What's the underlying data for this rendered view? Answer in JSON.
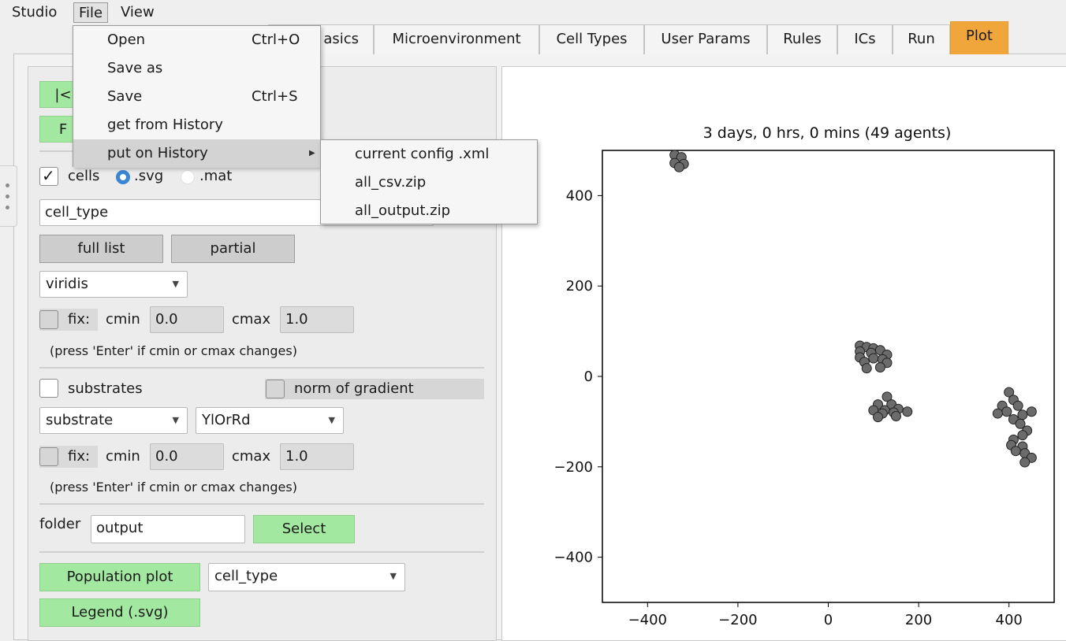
{
  "menubar": {
    "studio": "Studio",
    "file": "File",
    "view": "View"
  },
  "tabs": [
    {
      "label": "asics"
    },
    {
      "label": "Microenvironment"
    },
    {
      "label": "Cell Types"
    },
    {
      "label": "User Params"
    },
    {
      "label": "Rules"
    },
    {
      "label": "ICs"
    },
    {
      "label": "Run"
    },
    {
      "label": "Plot"
    }
  ],
  "file_menu": {
    "open": "Open",
    "open_shortcut": "Ctrl+O",
    "save_as": "Save as",
    "save": "Save",
    "save_shortcut": "Ctrl+S",
    "get_history": "get from History",
    "put_history": "put on History",
    "submenu": [
      "current config .xml",
      "all_csv.zip",
      "all_output.zip"
    ]
  },
  "left": {
    "first_btn": "|<",
    "second_btn": "F",
    "cells_label": "cells",
    "svg_label": ".svg",
    "mat_label": ".mat",
    "cell_field": "cell_type",
    "full_list": "full list",
    "partial": "partial",
    "cmap1": "viridis",
    "fix": "fix:",
    "cmin": "cmin",
    "cmin_val": "0.0",
    "cmax": "cmax",
    "cmax_val": "1.0",
    "note": "(press 'Enter' if cmin or cmax changes)",
    "substrates": "substrates",
    "norm_gradient": "norm of gradient",
    "substrate_combo": "substrate",
    "cmap2": "YlOrRd",
    "folder": "folder",
    "folder_val": "output",
    "select": "Select",
    "population_plot": "Population plot",
    "pop_combo": "cell_type",
    "legend": "Legend (.svg)"
  },
  "colors": {
    "active_tab": "#f0a63a",
    "green_button": "#a3e8a0",
    "cell_fill": "#6b6b6b",
    "radio": "#3a86d4"
  },
  "chart_data": {
    "type": "scatter",
    "title": "3 days, 0 hrs, 0 mins (49 agents)",
    "xlim": [
      -500,
      500
    ],
    "ylim": [
      -500,
      500
    ],
    "xticks": [
      -400,
      -200,
      0,
      200,
      400
    ],
    "yticks": [
      400,
      200,
      0,
      -200,
      -400
    ],
    "xticklabels": [
      "−400",
      "−200",
      "0",
      "200",
      "400"
    ],
    "yticklabels": [
      "400",
      "200",
      "0",
      "−200",
      "−400"
    ],
    "points": [
      [
        -340,
        490
      ],
      [
        -325,
        485
      ],
      [
        -340,
        472
      ],
      [
        -320,
        470
      ],
      [
        -330,
        463
      ],
      [
        70,
        68
      ],
      [
        85,
        65
      ],
      [
        100,
        62
      ],
      [
        115,
        58
      ],
      [
        70,
        55
      ],
      [
        95,
        52
      ],
      [
        130,
        48
      ],
      [
        70,
        42
      ],
      [
        100,
        40
      ],
      [
        120,
        38
      ],
      [
        80,
        32
      ],
      [
        130,
        30
      ],
      [
        85,
        18
      ],
      [
        115,
        20
      ],
      [
        130,
        -45
      ],
      [
        110,
        -62
      ],
      [
        140,
        -62
      ],
      [
        100,
        -75
      ],
      [
        125,
        -75
      ],
      [
        155,
        -72
      ],
      [
        175,
        -78
      ],
      [
        145,
        -80
      ],
      [
        120,
        -82
      ],
      [
        110,
        -90
      ],
      [
        150,
        -88
      ],
      [
        400,
        -35
      ],
      [
        410,
        -52
      ],
      [
        385,
        -65
      ],
      [
        420,
        -65
      ],
      [
        395,
        -78
      ],
      [
        450,
        -78
      ],
      [
        375,
        -82
      ],
      [
        430,
        -85
      ],
      [
        410,
        -95
      ],
      [
        425,
        -105
      ],
      [
        440,
        -120
      ],
      [
        430,
        -130
      ],
      [
        410,
        -140
      ],
      [
        405,
        -152
      ],
      [
        430,
        -155
      ],
      [
        415,
        -165
      ],
      [
        435,
        -170
      ],
      [
        450,
        -180
      ],
      [
        435,
        -190
      ]
    ]
  }
}
